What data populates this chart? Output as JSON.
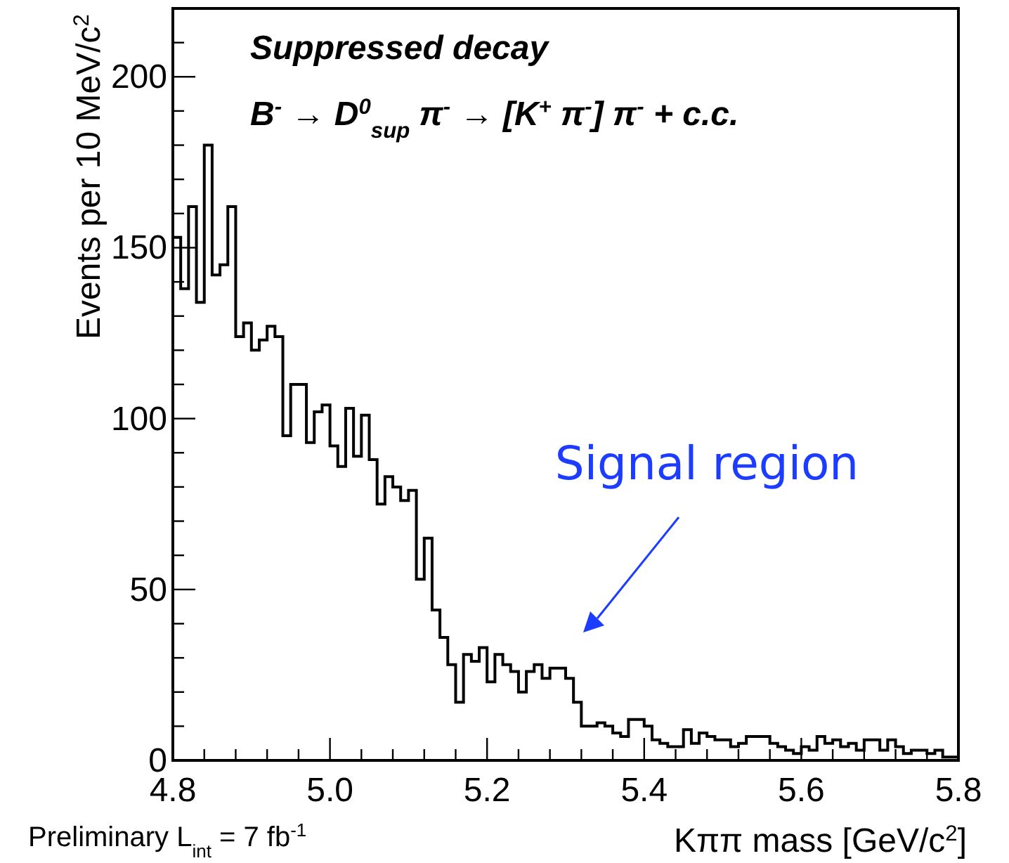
{
  "chart_data": {
    "type": "histogram",
    "title": "Suppressed decay",
    "subtitle": "B$^{-}$ → D$^{0}$$_{sup}$ π$^{-}$ → [K$^{+}$ π$^{-}$] π$^{-}$ + c.c.",
    "xlabel": "Kππ mass [GeV/c$^{2}$]",
    "ylabel": "Events per 10 MeV/c$^{2}$",
    "color": "#000000",
    "bins": [
      4.8,
      4.81,
      4.82,
      4.83,
      4.84,
      4.85,
      4.86,
      4.87,
      4.88,
      4.89,
      4.9,
      4.91,
      4.92,
      4.93,
      4.94,
      4.95,
      4.96,
      4.97,
      4.98,
      4.99,
      5.0,
      5.01,
      5.02,
      5.03,
      5.04,
      5.05,
      5.06,
      5.07,
      5.08,
      5.09,
      5.1,
      5.11,
      5.12,
      5.13,
      5.14,
      5.15,
      5.16,
      5.17,
      5.18,
      5.19,
      5.2,
      5.21,
      5.22,
      5.23,
      5.24,
      5.25,
      5.26,
      5.27,
      5.28,
      5.29,
      5.3,
      5.31,
      5.32,
      5.33,
      5.34,
      5.35,
      5.36,
      5.37,
      5.38,
      5.39,
      5.4,
      5.41,
      5.42,
      5.43,
      5.44,
      5.45,
      5.46,
      5.47,
      5.48,
      5.49,
      5.5,
      5.51,
      5.52,
      5.53,
      5.54,
      5.55,
      5.56,
      5.57,
      5.58,
      5.59,
      5.6,
      5.61,
      5.62,
      5.63,
      5.64,
      5.65,
      5.66,
      5.67,
      5.68,
      5.69,
      5.7,
      5.71,
      5.72,
      5.73,
      5.74,
      5.75,
      5.76,
      5.77,
      5.78,
      5.79,
      5.8
    ],
    "values": [
      153,
      138,
      162,
      134,
      180,
      142,
      145,
      162,
      124,
      128,
      120,
      123,
      127,
      124,
      95,
      110,
      110,
      93,
      102,
      104,
      92,
      86,
      103,
      89,
      101,
      88,
      75,
      83,
      80,
      76,
      79,
      53,
      65,
      44,
      36,
      28,
      17,
      31,
      29,
      33,
      23,
      31,
      28,
      26,
      20,
      26,
      28,
      24,
      27,
      27,
      24,
      17,
      10,
      10,
      11,
      10,
      8,
      7,
      12,
      12,
      10,
      6,
      5,
      4,
      4,
      9,
      5,
      8,
      7,
      6,
      6,
      4,
      5,
      7,
      7,
      7,
      5,
      4,
      3,
      2,
      4,
      3,
      7,
      5,
      6,
      4,
      5,
      3,
      6,
      6,
      3,
      6,
      4,
      2,
      3,
      3,
      2,
      3,
      1,
      1
    ],
    "xlim": [
      4.8,
      5.8
    ],
    "xticks": [
      {
        "value": 4.8,
        "label": "4.8"
      },
      {
        "value": 4.84,
        "label": null
      },
      {
        "value": 4.88,
        "label": null
      },
      {
        "value": 4.92,
        "label": null
      },
      {
        "value": 4.96,
        "label": null
      },
      {
        "value": 5.0,
        "label": "5.0"
      },
      {
        "value": 5.04,
        "label": null
      },
      {
        "value": 5.08,
        "label": null
      },
      {
        "value": 5.12,
        "label": null
      },
      {
        "value": 5.16,
        "label": null
      },
      {
        "value": 5.2,
        "label": "5.2"
      },
      {
        "value": 5.24,
        "label": null
      },
      {
        "value": 5.28,
        "label": null
      },
      {
        "value": 5.32,
        "label": null
      },
      {
        "value": 5.36,
        "label": null
      },
      {
        "value": 5.4,
        "label": "5.4"
      },
      {
        "value": 5.44,
        "label": null
      },
      {
        "value": 5.48,
        "label": null
      },
      {
        "value": 5.52,
        "label": null
      },
      {
        "value": 5.56,
        "label": null
      },
      {
        "value": 5.6,
        "label": "5.6"
      },
      {
        "value": 5.64,
        "label": null
      },
      {
        "value": 5.68,
        "label": null
      },
      {
        "value": 5.72,
        "label": null
      },
      {
        "value": 5.76,
        "label": null
      },
      {
        "value": 5.8,
        "label": "5.8"
      }
    ],
    "ylim": [
      0,
      220
    ],
    "yticks": [
      0,
      {
        "value": 10,
        "label": null
      },
      {
        "value": 20,
        "label": null
      },
      {
        "value": 30,
        "label": null
      },
      {
        "value": 40,
        "label": null
      },
      50,
      {
        "value": 60,
        "label": null
      },
      {
        "value": 70,
        "label": null
      },
      {
        "value": 80,
        "label": null
      },
      {
        "value": 90,
        "label": null
      },
      100,
      {
        "value": 110,
        "label": null
      },
      {
        "value": 120,
        "label": null
      },
      {
        "value": 130,
        "label": null
      },
      {
        "value": 140,
        "label": null
      },
      150,
      {
        "value": 160,
        "label": null
      },
      {
        "value": 170,
        "label": null
      },
      {
        "value": 180,
        "label": null
      },
      {
        "value": 190,
        "label": null
      },
      200,
      {
        "value": 210,
        "label": null
      }
    ],
    "grid": false,
    "annotations": [
      "Signal region",
      "Preliminary L$_{int}$ = 7 fb$^{-1}$"
    ]
  }
}
